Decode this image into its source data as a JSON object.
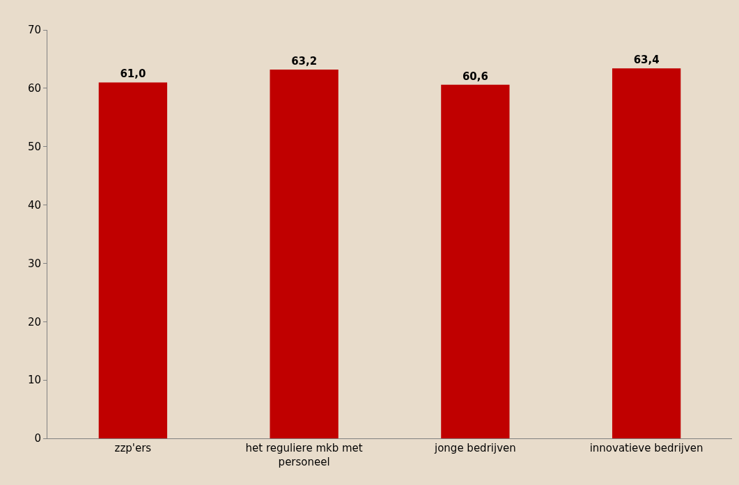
{
  "chart_data": {
    "type": "bar",
    "categories": [
      "zzp'ers",
      "het reguliere mkb met personeel",
      "jonge bedrijven",
      "innovatieve bedrijven"
    ],
    "values": [
      61.0,
      63.2,
      60.6,
      63.4
    ],
    "value_labels": [
      "61,0",
      "63,2",
      "60,6",
      "63,4"
    ],
    "color": "#c00000",
    "ylim": [
      0,
      70
    ],
    "yticks": [
      0,
      10,
      20,
      30,
      40,
      50,
      60,
      70
    ],
    "grid": false,
    "legend": false
  }
}
